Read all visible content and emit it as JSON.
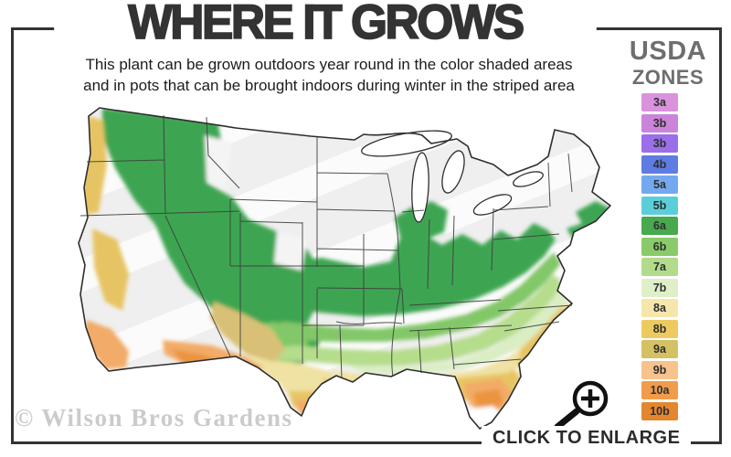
{
  "frame": {
    "border_color": "#333333"
  },
  "header": {
    "title": "WHERE IT GROWS",
    "subtitle_line1": "This plant can be grown outdoors year round in the color shaded areas",
    "subtitle_line2": "and in pots that can be brought indoors during winter in the striped area"
  },
  "legend": {
    "heading_line1": "USDA",
    "heading_line2": "ZONES",
    "zones": [
      {
        "label": "3a",
        "color": "#d993dd"
      },
      {
        "label": "3b",
        "color": "#cb84da"
      },
      {
        "label": "3b",
        "color": "#9b6fe9"
      },
      {
        "label": "4b",
        "color": "#5f7ce3"
      },
      {
        "label": "5a",
        "color": "#74a9f0"
      },
      {
        "label": "5b",
        "color": "#5bcfd9"
      },
      {
        "label": "6a",
        "color": "#48a94f"
      },
      {
        "label": "6b",
        "color": "#8aca6a"
      },
      {
        "label": "7a",
        "color": "#b2dc8b"
      },
      {
        "label": "7b",
        "color": "#dff0c9"
      },
      {
        "label": "8a",
        "color": "#f5e6ab"
      },
      {
        "label": "8b",
        "color": "#ecca60"
      },
      {
        "label": "9a",
        "color": "#d5c063"
      },
      {
        "label": "9b",
        "color": "#f7c28c"
      },
      {
        "label": "10a",
        "color": "#f09c4a"
      },
      {
        "label": "10b",
        "color": "#e4862f"
      }
    ]
  },
  "map": {
    "label": "USDA plant hardiness zone map of the continental United States",
    "colors": {
      "base": "#efefef",
      "stripe_band": "#fbfbfb",
      "outline": "#2e2e2e",
      "state_line": "#3e3e3e",
      "lake_fill": "#ffffff",
      "green_dark": "#3ea551",
      "green_mid": "#82c768",
      "green_light": "#b5dd8c",
      "green_pale": "#d9eec3",
      "yellow_pale": "#f0e2a2",
      "gold": "#e7c463",
      "tan": "#d8c176",
      "peach": "#f2ab67",
      "orange": "#eb9440",
      "white_zone": "#ffffff",
      "hole_white": "#f4f4f4"
    }
  },
  "watermark": {
    "text": "© Wilson Bros Gardens"
  },
  "footer": {
    "cta": "CLICK TO ENLARGE"
  },
  "icons": {
    "magnifier": "zoom-in-magnifier"
  }
}
